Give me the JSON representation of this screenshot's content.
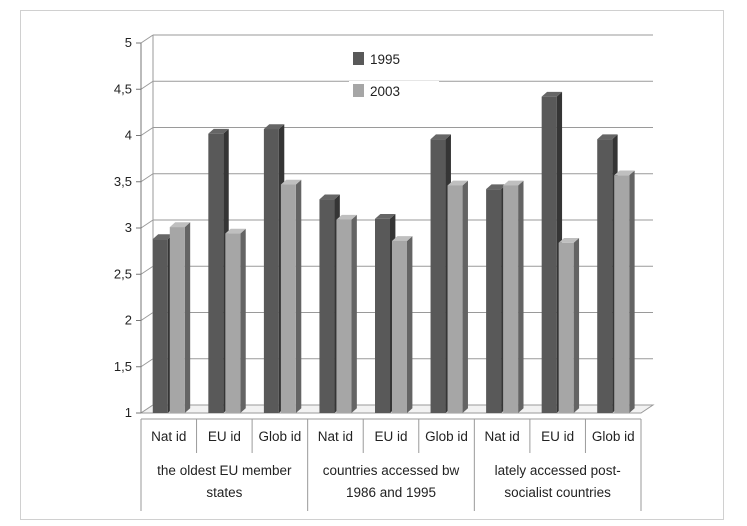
{
  "chart_data": {
    "type": "bar",
    "title": "",
    "xlabel": "",
    "ylabel": "",
    "ylim": [
      1,
      5
    ],
    "yticks": [
      "1",
      "1,5",
      "2",
      "2,5",
      "3",
      "3,5",
      "4",
      "4,5",
      "5"
    ],
    "grid": true,
    "legend_position": "top-center",
    "groups": [
      {
        "label": "the oldest EU member states",
        "label_lines": [
          "the oldest EU member",
          "states"
        ]
      },
      {
        "label": "countries accessed bw 1986 and 1995",
        "label_lines": [
          "countries accessed bw",
          "1986 and 1995"
        ]
      },
      {
        "label": "lately accessed post-socialist countries",
        "label_lines": [
          "lately accessed post-",
          "socialist countries"
        ]
      }
    ],
    "categories": [
      "Nat id",
      "EU id",
      "Glob id",
      "Nat id",
      "EU id",
      "Glob id",
      "Nat id",
      "EU id",
      "Glob id"
    ],
    "series": [
      {
        "name": "1995",
        "color": "#595959",
        "values": [
          2.88,
          4.02,
          4.07,
          3.31,
          3.1,
          3.96,
          3.42,
          4.42,
          3.96
        ]
      },
      {
        "name": "2003",
        "color": "#a6a6a6",
        "values": [
          3.01,
          2.94,
          3.47,
          3.09,
          2.86,
          3.46,
          3.46,
          2.84,
          3.57
        ]
      }
    ]
  }
}
